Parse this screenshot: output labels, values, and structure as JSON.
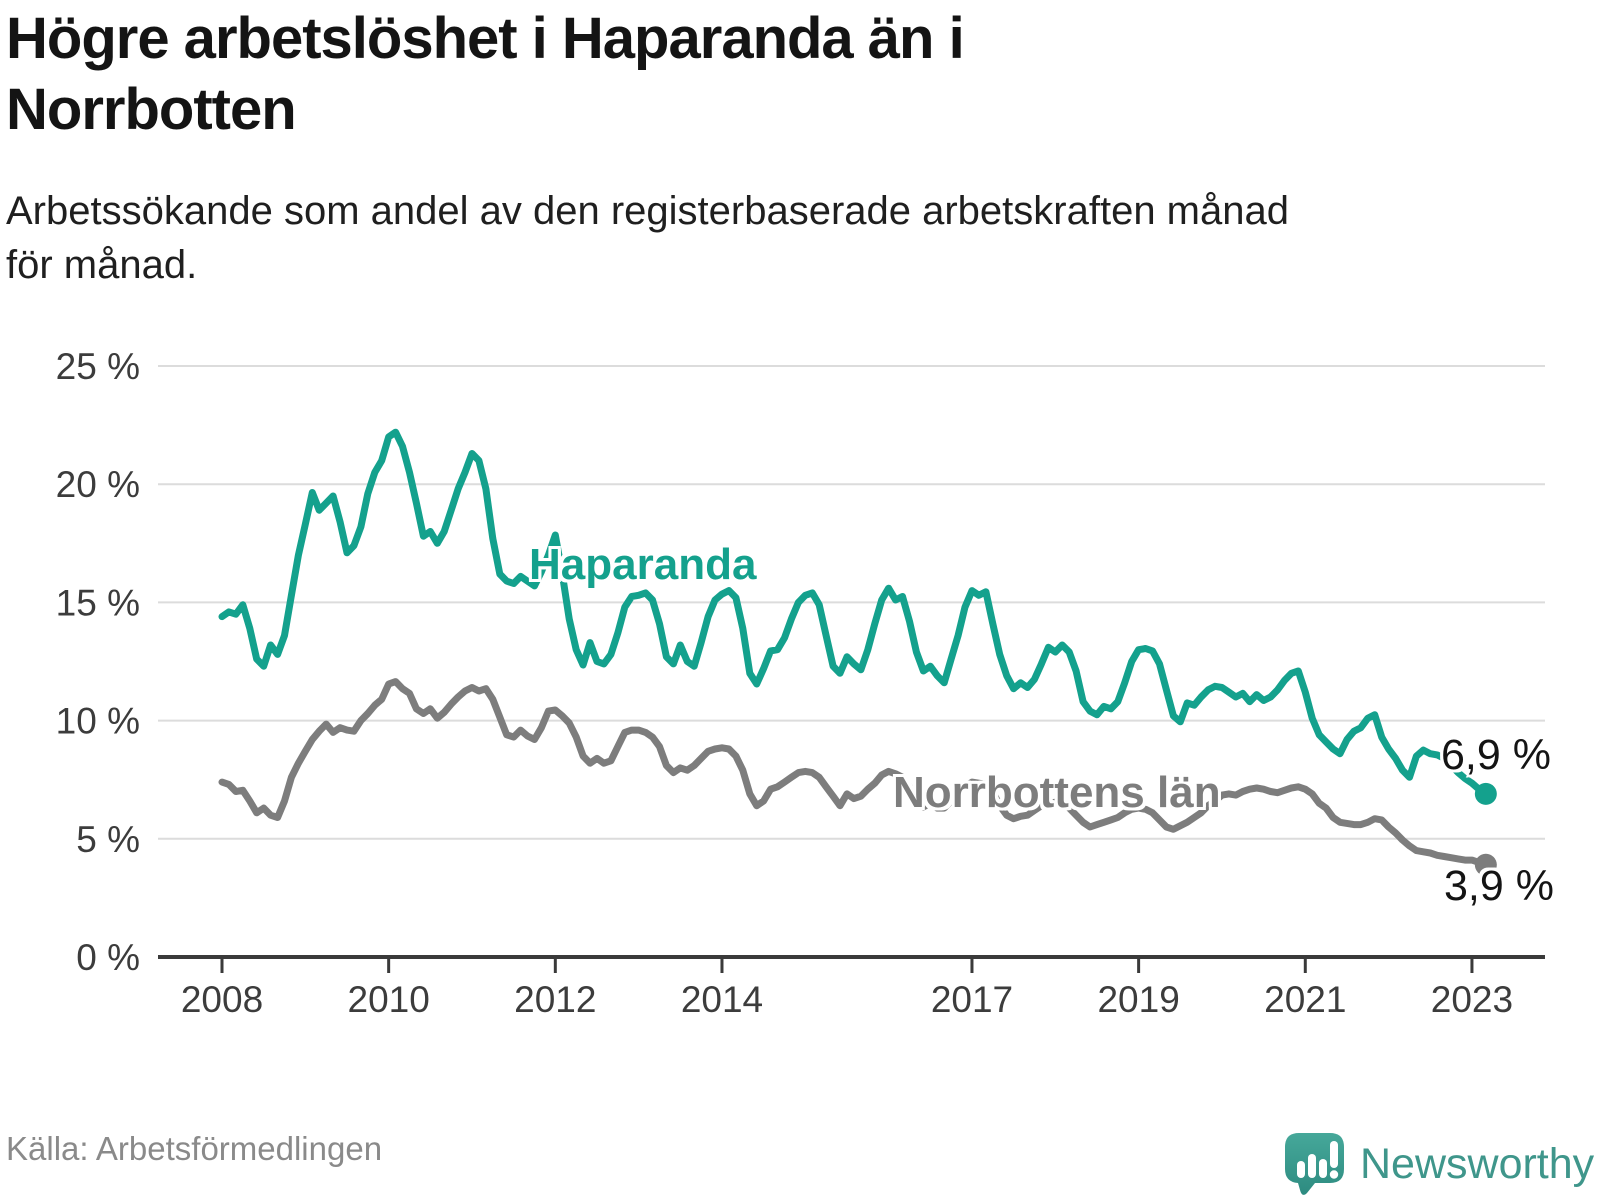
{
  "header": {
    "title": "Högre arbetslöshet i Haparanda än i Norrbotten",
    "title_line1": "Högre arbetslöshet i Haparanda än i",
    "title_line2": "Norrbotten",
    "subtitle": "Arbetssökande som andel av den registerbaserade arbetskraften månad för månad.",
    "subtitle_line1": "Arbetssökande som andel av den registerbaserade arbetskraften månad",
    "subtitle_line2": "för månad."
  },
  "footer": {
    "source": "Källa: Arbetsförmedlingen",
    "brand": "Newsworthy",
    "logo_icon": "bar-chart-speech-bubble-icon",
    "brand_color": "#3f968b",
    "logo_fill_top": "#46a89a",
    "logo_fill_bottom": "#2d8b80"
  },
  "chart_data": {
    "type": "line",
    "title": "Högre arbetslöshet i Haparanda än i Norrbotten",
    "xlabel": "",
    "ylabel": "",
    "unit": "%",
    "ylim": [
      0,
      25
    ],
    "grid": true,
    "grid_color": "#dcdcdc",
    "axis_color": "#3a3a3a",
    "tick_label_color": "#3c3c3c",
    "x_start": "2008-01",
    "x_end": "2023-03",
    "frequency": "monthly",
    "yticks": [
      {
        "value": 0,
        "label": "0 %"
      },
      {
        "value": 5,
        "label": "5 %"
      },
      {
        "value": 10,
        "label": "10 %"
      },
      {
        "value": 15,
        "label": "15 %"
      },
      {
        "value": 20,
        "label": "20 %"
      },
      {
        "value": 25,
        "label": "25 %"
      }
    ],
    "xticks": [
      {
        "value": 2008,
        "label": "2008"
      },
      {
        "value": 2010,
        "label": "2010"
      },
      {
        "value": 2012,
        "label": "2012"
      },
      {
        "value": 2014,
        "label": "2014"
      },
      {
        "value": 2017,
        "label": "2017"
      },
      {
        "value": 2019,
        "label": "2019"
      },
      {
        "value": 2021,
        "label": "2021"
      },
      {
        "value": 2023,
        "label": "2023"
      }
    ],
    "series": [
      {
        "id": "haparanda",
        "name": "Haparanda",
        "label": "Haparanda",
        "end_label": "6,9 %",
        "end_value": 6.9,
        "color": "#14a18d",
        "values": [
          14.4,
          14.6,
          14.5,
          14.9,
          13.9,
          12.6,
          12.3,
          13.2,
          12.8,
          13.6,
          15.3,
          17.0,
          18.3,
          19.65,
          18.9,
          19.2,
          19.5,
          18.4,
          17.1,
          17.4,
          18.2,
          19.6,
          20.5,
          21.0,
          22.0,
          22.2,
          21.6,
          20.5,
          19.2,
          17.8,
          18.0,
          17.5,
          18.0,
          18.9,
          19.8,
          20.5,
          21.3,
          21.0,
          19.8,
          17.7,
          16.2,
          15.9,
          15.8,
          16.1,
          15.9,
          15.7,
          16.3,
          17.0,
          17.85,
          16.2,
          14.3,
          13.0,
          12.35,
          13.3,
          12.5,
          12.4,
          12.8,
          13.7,
          14.8,
          15.25,
          15.3,
          15.4,
          15.1,
          14.1,
          12.7,
          12.4,
          13.2,
          12.5,
          12.3,
          13.3,
          14.4,
          15.1,
          15.35,
          15.5,
          15.2,
          13.9,
          12.0,
          11.55,
          12.2,
          12.95,
          13.0,
          13.5,
          14.3,
          15.0,
          15.3,
          15.4,
          14.9,
          13.6,
          12.3,
          12.0,
          12.7,
          12.4,
          12.15,
          13.0,
          14.1,
          15.1,
          15.6,
          15.1,
          15.25,
          14.2,
          12.9,
          12.1,
          12.3,
          11.9,
          11.6,
          12.6,
          13.6,
          14.8,
          15.5,
          15.3,
          15.45,
          14.1,
          12.8,
          11.9,
          11.35,
          11.6,
          11.4,
          11.75,
          12.4,
          13.1,
          12.9,
          13.2,
          12.9,
          12.1,
          10.8,
          10.4,
          10.25,
          10.6,
          10.5,
          10.8,
          11.6,
          12.5,
          13.0,
          13.05,
          12.95,
          12.4,
          11.3,
          10.2,
          9.95,
          10.75,
          10.65,
          11.0,
          11.3,
          11.45,
          11.4,
          11.2,
          11.0,
          11.15,
          10.8,
          11.1,
          10.85,
          11.0,
          11.3,
          11.7,
          12.0,
          12.1,
          11.2,
          10.1,
          9.4,
          9.1,
          8.8,
          8.6,
          9.2,
          9.55,
          9.7,
          10.1,
          10.25,
          9.3,
          8.8,
          8.4,
          7.9,
          7.6,
          8.5,
          8.75,
          8.6,
          8.55,
          8.4,
          8.1,
          7.8,
          7.55,
          7.35,
          7.1,
          6.9
        ]
      },
      {
        "id": "norrbotten",
        "name": "Norrbottens län",
        "label": "Norrbottens län",
        "end_label": "3,9 %",
        "end_value": 3.9,
        "color": "#7d7d7d",
        "values": [
          7.4,
          7.3,
          7.0,
          7.05,
          6.6,
          6.1,
          6.3,
          6.0,
          5.9,
          6.6,
          7.6,
          8.2,
          8.7,
          9.2,
          9.55,
          9.85,
          9.5,
          9.7,
          9.6,
          9.55,
          10.0,
          10.3,
          10.65,
          10.9,
          11.55,
          11.65,
          11.35,
          11.15,
          10.5,
          10.3,
          10.5,
          10.1,
          10.35,
          10.7,
          11.0,
          11.25,
          11.4,
          11.25,
          11.35,
          10.9,
          10.15,
          9.4,
          9.3,
          9.6,
          9.35,
          9.2,
          9.7,
          10.4,
          10.45,
          10.2,
          9.9,
          9.3,
          8.5,
          8.2,
          8.4,
          8.2,
          8.3,
          8.9,
          9.5,
          9.6,
          9.6,
          9.5,
          9.3,
          8.9,
          8.1,
          7.8,
          8.0,
          7.9,
          8.1,
          8.4,
          8.7,
          8.8,
          8.85,
          8.8,
          8.5,
          7.9,
          6.9,
          6.4,
          6.6,
          7.1,
          7.2,
          7.4,
          7.6,
          7.8,
          7.85,
          7.8,
          7.6,
          7.2,
          6.8,
          6.4,
          6.9,
          6.7,
          6.8,
          7.1,
          7.35,
          7.7,
          7.85,
          7.75,
          7.6,
          7.2,
          6.7,
          6.35,
          6.5,
          6.3,
          6.3,
          6.6,
          6.9,
          7.2,
          7.4,
          7.35,
          7.3,
          7.0,
          6.4,
          6.0,
          5.85,
          5.95,
          6.0,
          6.2,
          6.4,
          6.5,
          6.55,
          6.5,
          6.3,
          6.0,
          5.7,
          5.5,
          5.6,
          5.7,
          5.8,
          5.9,
          6.1,
          6.25,
          6.3,
          6.25,
          6.1,
          5.8,
          5.5,
          5.4,
          5.55,
          5.7,
          5.9,
          6.1,
          6.4,
          6.6,
          6.85,
          6.9,
          6.85,
          7.0,
          7.1,
          7.15,
          7.1,
          7.0,
          6.95,
          7.05,
          7.15,
          7.2,
          7.1,
          6.9,
          6.5,
          6.3,
          5.9,
          5.7,
          5.65,
          5.6,
          5.6,
          5.7,
          5.85,
          5.8,
          5.5,
          5.25,
          4.95,
          4.7,
          4.5,
          4.45,
          4.4,
          4.3,
          4.25,
          4.2,
          4.15,
          4.1,
          4.1,
          4.0,
          3.9
        ]
      }
    ],
    "legend_position": "inline-labels",
    "annotations": [
      {
        "text": "Haparanda",
        "series": "haparanda",
        "type": "series-label"
      },
      {
        "text": "Norrbottens län",
        "series": "norrbotten",
        "type": "series-label"
      },
      {
        "text": "6,9 %",
        "series": "haparanda",
        "type": "end-value-label"
      },
      {
        "text": "3,9 %",
        "series": "norrbotten",
        "type": "end-value-label"
      }
    ]
  }
}
